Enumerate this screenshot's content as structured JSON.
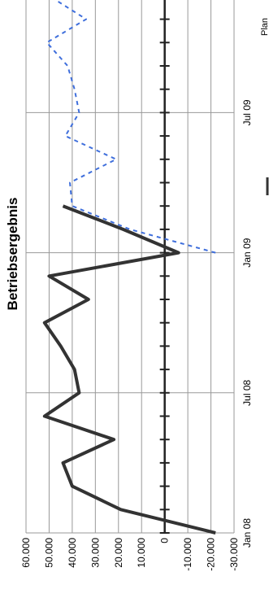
{
  "chart_data": {
    "type": "line",
    "title": "Betriebsergebnis",
    "categories": [
      "Jan 08",
      null,
      null,
      null,
      null,
      null,
      "Jul 08",
      null,
      null,
      null,
      null,
      null,
      "Jan 09",
      null,
      null,
      null,
      null,
      null,
      "Jul 09",
      null,
      null,
      null,
      null,
      null
    ],
    "series": [
      {
        "color": "#333333",
        "dash": false,
        "values": [
          -22000,
          19000,
          40000,
          44000,
          22000,
          52000,
          37000,
          39000,
          45000,
          52000,
          33000,
          50000,
          -6000,
          18000,
          44000,
          null,
          null,
          null,
          null,
          null,
          null,
          null,
          null,
          null
        ]
      },
      {
        "name": "Plan",
        "color": "#3f6fdc",
        "dash": true,
        "values": [
          null,
          null,
          null,
          null,
          null,
          null,
          null,
          null,
          null,
          null,
          null,
          null,
          -22000,
          15000,
          40000,
          41000,
          21000,
          43000,
          37000,
          39000,
          42000,
          51000,
          34000,
          50000
        ]
      }
    ],
    "ylim": [
      -30000,
      60000
    ],
    "yticks": [
      {
        "value": -30000,
        "label": "-30.000"
      },
      {
        "value": -20000,
        "label": "-20.000"
      },
      {
        "value": -10000,
        "label": "-10.000"
      },
      0,
      {
        "value": 10000,
        "label": "10.000"
      },
      {
        "value": 20000,
        "label": "20.000"
      },
      {
        "value": 30000,
        "label": "30.000"
      },
      {
        "value": 40000,
        "label": "40.000"
      },
      {
        "value": 50000,
        "label": "50.000"
      },
      {
        "value": 60000,
        "label": "60.000"
      }
    ],
    "grid": true
  }
}
